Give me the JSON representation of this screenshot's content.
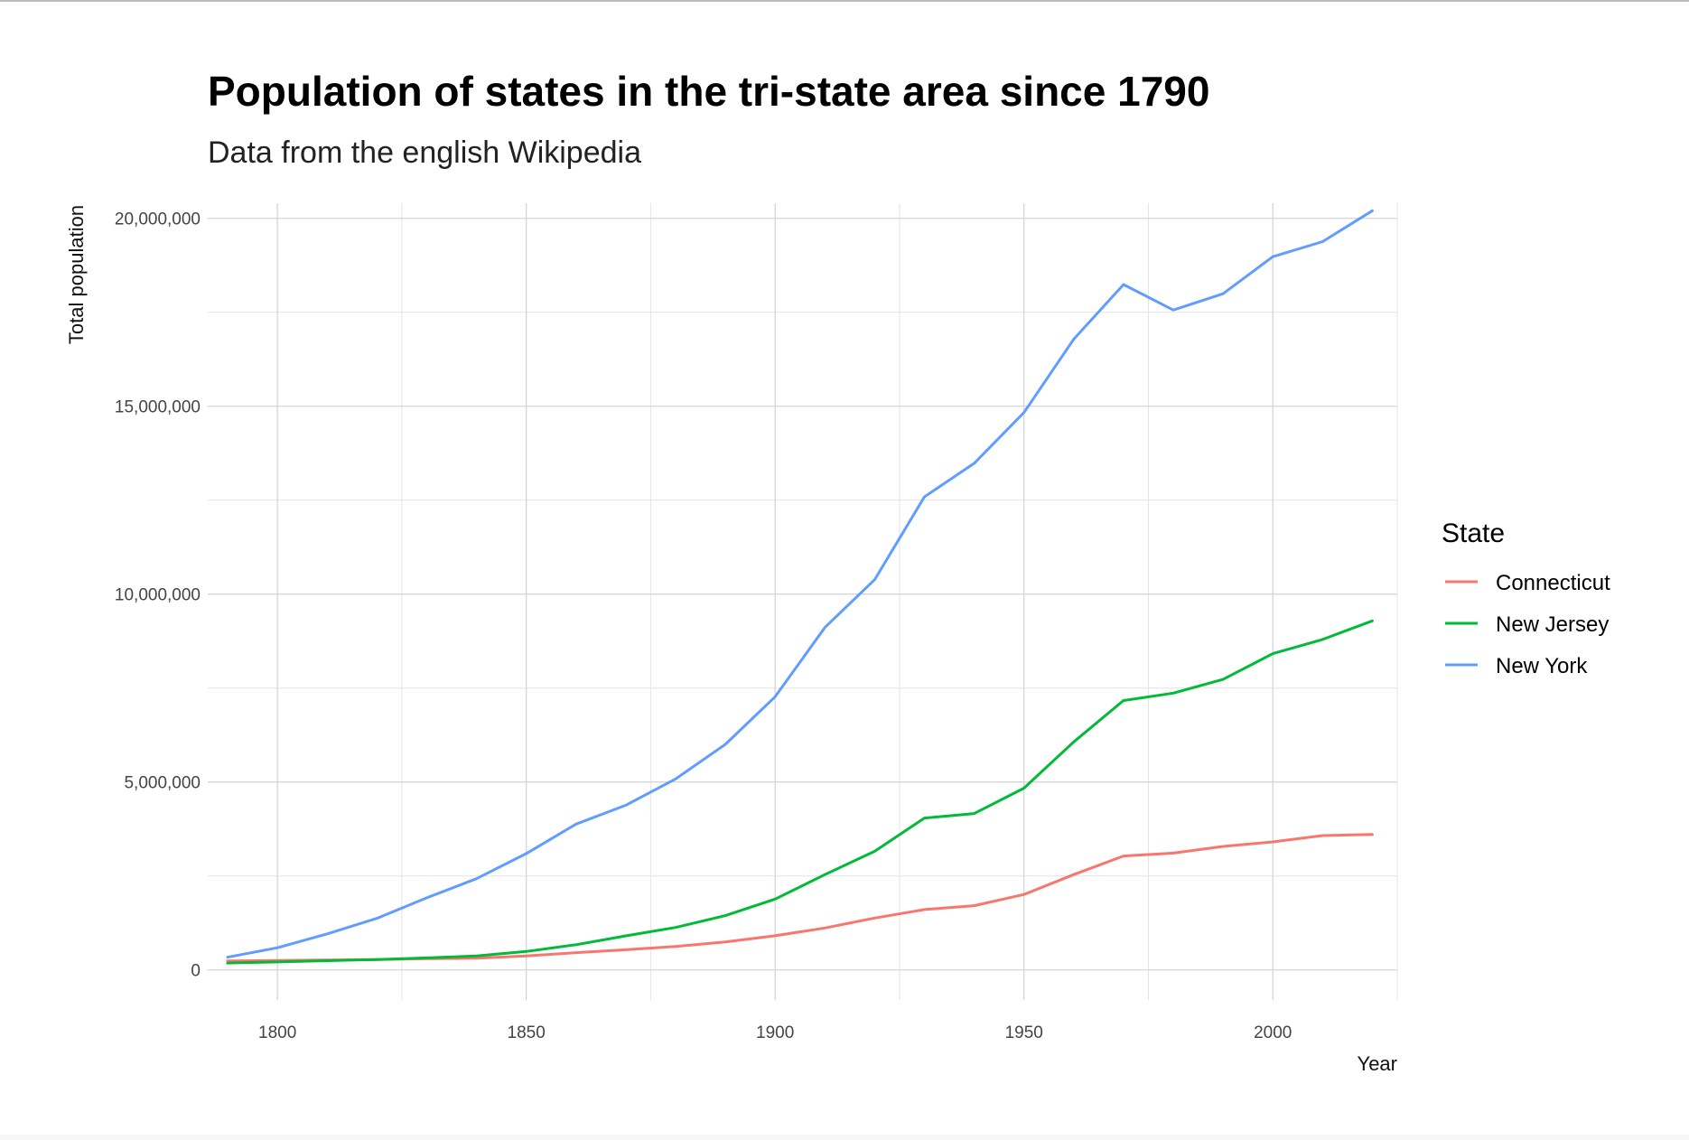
{
  "chart_data": {
    "type": "line",
    "title": "Population of states in the tri-state area since 1790",
    "subtitle": "Data from the english Wikipedia",
    "xlabel": "Year",
    "ylabel": "Total population",
    "xlim": [
      1786,
      2025
    ],
    "ylim": [
      -800000,
      20400000
    ],
    "x_ticks": [
      1800,
      1850,
      1900,
      1950,
      2000
    ],
    "x_minor_ticks": [
      1825,
      1875,
      1925,
      1975,
      2025
    ],
    "x_tick_labels": [
      "1800",
      "1850",
      "1900",
      "1950",
      "2000"
    ],
    "y_ticks": [
      0,
      5000000,
      10000000,
      15000000,
      20000000
    ],
    "y_minor_ticks": [
      2500000,
      7500000,
      12500000,
      17500000
    ],
    "y_tick_labels": [
      "0",
      "5,000,000",
      "10,000,000",
      "15,000,000",
      "20,000,000"
    ],
    "grid": true,
    "legend": {
      "title": "State",
      "placement": "right"
    },
    "x": [
      1790,
      1800,
      1810,
      1820,
      1830,
      1840,
      1850,
      1860,
      1870,
      1880,
      1890,
      1900,
      1910,
      1920,
      1930,
      1940,
      1950,
      1960,
      1970,
      1980,
      1990,
      2000,
      2010,
      2020
    ],
    "series": [
      {
        "name": "Connecticut",
        "color": "#f8766d",
        "values": [
          237946,
          251002,
          261942,
          275248,
          297675,
          309978,
          370792,
          460147,
          537454,
          622700,
          746258,
          908420,
          1114756,
          1380631,
          1606903,
          1709242,
          2007280,
          2535234,
          3031709,
          3107576,
          3287116,
          3405565,
          3574097,
          3605944
        ]
      },
      {
        "name": "New Jersey",
        "color": "#00ba38",
        "values": [
          184139,
          211149,
          245562,
          277575,
          320823,
          373306,
          489555,
          672035,
          906096,
          1131116,
          1444933,
          1883669,
          2537167,
          3155900,
          4041334,
          4160165,
          4835329,
          6066782,
          7168164,
          7364823,
          7730188,
          8414350,
          8791894,
          9288994
        ]
      },
      {
        "name": "New York",
        "color": "#619cff",
        "values": [
          340120,
          589051,
          959049,
          1372812,
          1918608,
          2428921,
          3097394,
          3880735,
          4382759,
          5082871,
          6003174,
          7268894,
          9113614,
          10385227,
          12588066,
          13479142,
          14830192,
          16782304,
          18236967,
          17558072,
          17990455,
          18976457,
          19378102,
          20201249
        ]
      }
    ]
  }
}
